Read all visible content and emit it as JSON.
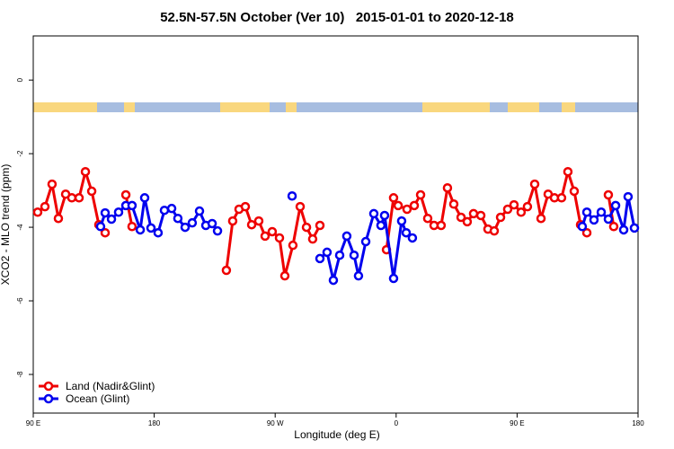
{
  "chart_data": {
    "type": "line",
    "title": "52.5N-57.5N October (Ver 10)   2015-01-01 to 2020-12-18",
    "xlabel": "Longitude (deg E)",
    "ylabel": "XCO2 - MLO trend (ppm)",
    "xlim": [
      90,
      540
    ],
    "ylim": [
      -9.05,
      1.2
    ],
    "xticks": [
      {
        "value": 90,
        "label": "90 E"
      },
      180,
      {
        "value": 270,
        "label": "90 W"
      },
      {
        "value": 360,
        "label": "0"
      },
      {
        "value": 450,
        "label": "90 E"
      },
      {
        "value": 540,
        "label": "180"
      }
    ],
    "yticks": [
      0,
      -2,
      -4,
      -6,
      -8
    ],
    "legend": "bottom-left",
    "series": [
      {
        "name": "Land (Nadir&Glint)",
        "color": "#ee0000",
        "x": [
          93.3,
          98.7,
          104.0,
          108.7,
          114.1,
          118.7,
          124.1,
          128.8,
          133.5,
          138.8,
          143.5,
          null,
          158.9,
          163.5,
          null,
          233.7,
          238.4,
          243.1,
          247.8,
          252.5,
          257.8,
          262.5,
          267.8,
          273.2,
          277.2,
          283.2,
          288.6,
          293.3,
          297.9,
          303.3,
          null,
          352.8,
          358.1,
          361.5,
          368.1,
          373.5,
          378.2,
          383.5,
          388.2,
          393.5,
          398.2,
          402.9,
          408.3,
          412.9,
          417.6,
          423.0,
          428.3,
          433.0,
          437.7,
          443.0,
          447.7,
          453.0,
          457.7,
          463.1,
          467.8,
          473.1,
          477.8,
          483.1,
          487.8,
          492.5,
          497.2,
          501.9,
          null,
          517.9,
          521.9
        ],
        "values": [
          -3.59,
          -3.44,
          -2.83,
          -3.76,
          -3.1,
          -3.2,
          -3.2,
          -2.49,
          -3.02,
          -3.93,
          -4.15,
          null,
          -3.12,
          -3.98,
          null,
          -5.17,
          -3.83,
          -3.51,
          -3.44,
          -3.93,
          -3.83,
          -4.24,
          -4.12,
          -4.29,
          -5.32,
          -4.49,
          -3.44,
          -4.0,
          -4.32,
          -3.95,
          null,
          -4.61,
          -3.2,
          -3.41,
          -3.51,
          -3.41,
          -3.12,
          -3.76,
          -3.95,
          -3.95,
          -2.93,
          -3.37,
          -3.73,
          -3.85,
          -3.63,
          -3.68,
          -4.05,
          -4.1,
          -3.73,
          -3.51,
          -3.39,
          -3.59,
          -3.44,
          -2.83,
          -3.76,
          -3.1,
          -3.2,
          -3.2,
          -2.49,
          -3.02,
          -3.93,
          -4.15,
          null,
          -3.12,
          -3.98
        ]
      },
      {
        "name": "Ocean (Glint)",
        "color": "#0000ee",
        "x": [
          140.1,
          143.5,
          148.2,
          153.5,
          158.9,
          163.5,
          169.6,
          172.9,
          177.6,
          182.9,
          187.6,
          193.0,
          197.6,
          203.0,
          208.3,
          213.7,
          218.4,
          223.1,
          227.1,
          null,
          282.6,
          null,
          303.3,
          308.6,
          313.3,
          318.0,
          323.3,
          328.7,
          332.0,
          337.4,
          343.4,
          348.7,
          351.4,
          358.1,
          364.1,
          367.5,
          372.1,
          null,
          498.5,
          501.9,
          507.2,
          512.6,
          517.9,
          523.3,
          529.3,
          532.6,
          537.3
        ],
        "values": [
          -3.98,
          -3.61,
          -3.78,
          -3.59,
          -3.41,
          -3.41,
          -4.07,
          -3.2,
          -4.02,
          -4.15,
          -3.54,
          -3.49,
          -3.76,
          -4.0,
          -3.88,
          -3.56,
          -3.95,
          -3.9,
          -4.1,
          null,
          -3.15,
          null,
          -4.85,
          -4.68,
          -5.44,
          -4.76,
          -4.24,
          -4.76,
          -5.32,
          -4.39,
          -3.63,
          -3.95,
          -3.68,
          -5.39,
          -3.83,
          -4.15,
          -4.29,
          null,
          -3.98,
          -3.59,
          -3.8,
          -3.59,
          -3.78,
          -3.41,
          -4.07,
          -3.17,
          -4.02
        ]
      }
    ]
  }
}
